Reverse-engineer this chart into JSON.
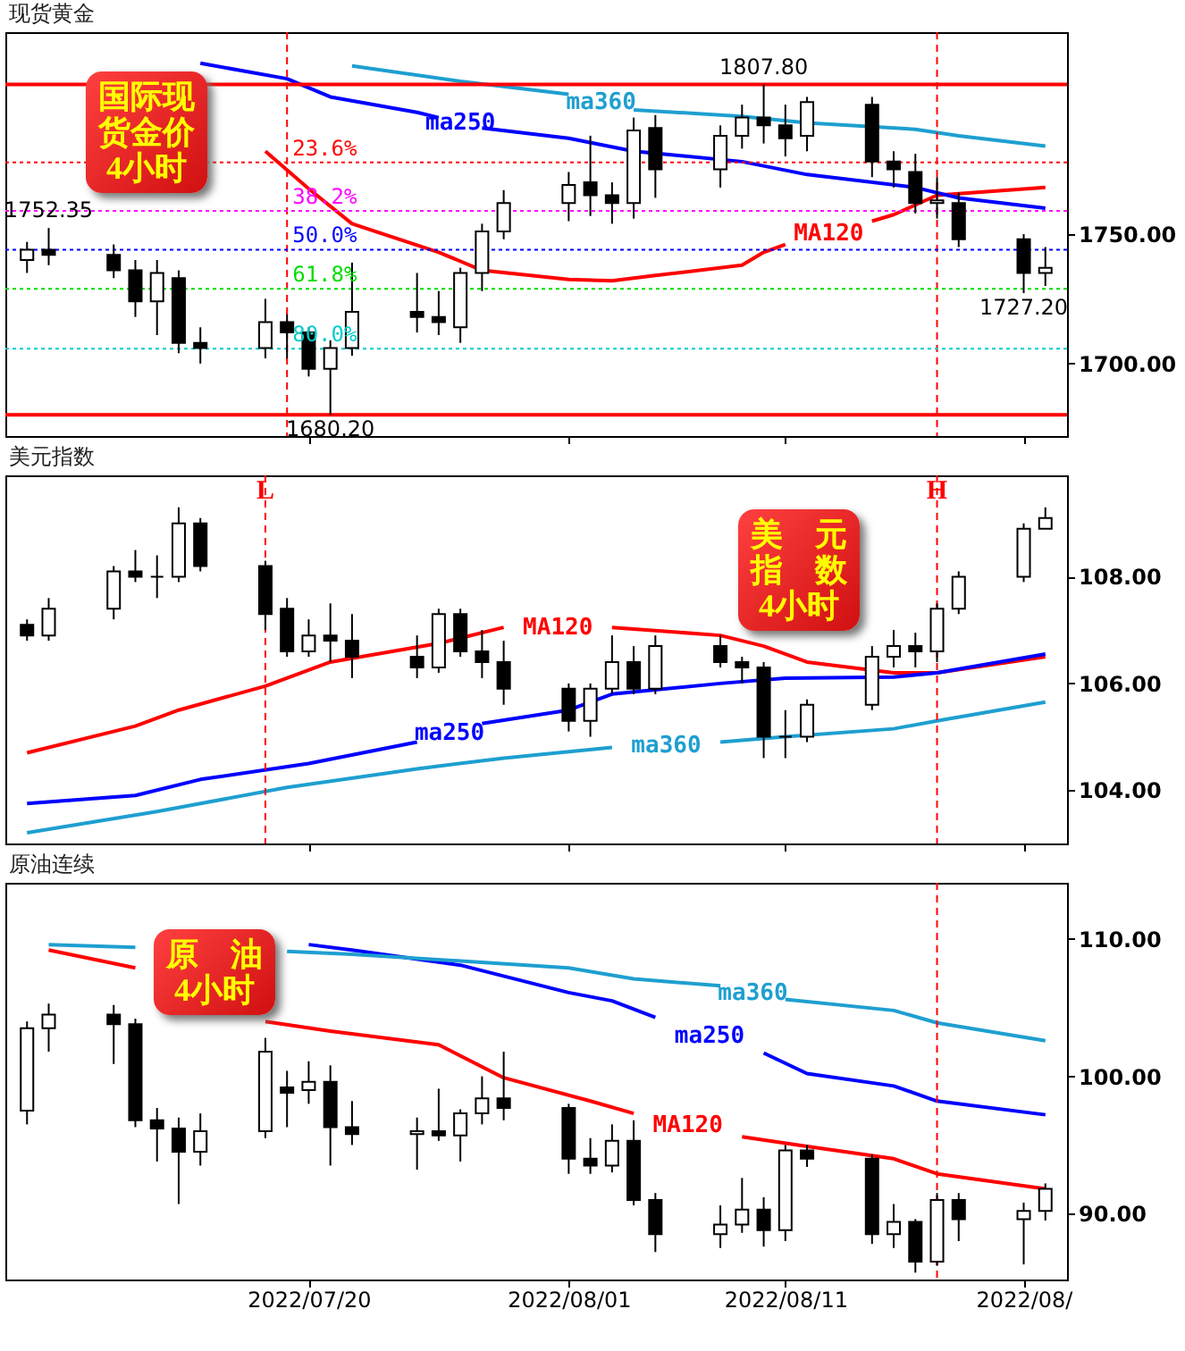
{
  "chart_data": [
    {
      "type": "candlestick",
      "title": "现货黄金",
      "xlim": [
        "2022-07-06",
        "2022-08-24"
      ],
      "tick_labels": "y",
      "x": [
        "2022-07-07",
        "2022-07-08",
        "2022-07-11",
        "2022-07-12",
        "2022-07-13",
        "2022-07-14",
        "2022-07-15",
        "2022-07-18",
        "2022-07-19",
        "2022-07-20",
        "2022-07-21",
        "2022-07-22",
        "2022-07-25",
        "2022-07-26",
        "2022-07-27",
        "2022-07-28",
        "2022-07-29",
        "2022-08-01",
        "2022-08-02",
        "2022-08-03",
        "2022-08-04",
        "2022-08-05",
        "2022-08-08",
        "2022-08-09",
        "2022-08-10",
        "2022-08-11",
        "2022-08-12",
        "2022-08-15",
        "2022-08-16",
        "2022-08-17",
        "2022-08-18",
        "2022-08-19",
        "2022-08-22",
        "2022-08-23"
      ],
      "ohlc": [
        [
          1740,
          1747,
          1735,
          1744
        ],
        [
          1744,
          1752.35,
          1738,
          1742
        ],
        [
          1742,
          1746,
          1733,
          1736
        ],
        [
          1736,
          1740,
          1718,
          1724
        ],
        [
          1724,
          1740,
          1711,
          1735
        ],
        [
          1733,
          1736,
          1704,
          1708
        ],
        [
          1708,
          1714,
          1700,
          1706
        ],
        [
          1706,
          1725,
          1702,
          1716
        ],
        [
          1716,
          1719,
          1702,
          1712
        ],
        [
          1712,
          1714,
          1695,
          1698
        ],
        [
          1698,
          1709,
          1680.2,
          1706
        ],
        [
          1706,
          1739,
          1703,
          1720
        ],
        [
          1720,
          1735,
          1712,
          1718
        ],
        [
          1718,
          1728,
          1711,
          1716
        ],
        [
          1714,
          1737,
          1708,
          1735
        ],
        [
          1735,
          1754,
          1728,
          1751
        ],
        [
          1751,
          1767,
          1748,
          1762
        ],
        [
          1762,
          1774,
          1755,
          1769
        ],
        [
          1770,
          1788,
          1757,
          1765
        ],
        [
          1765,
          1770,
          1754,
          1762
        ],
        [
          1762,
          1795,
          1756,
          1790
        ],
        [
          1791,
          1796,
          1764,
          1775
        ],
        [
          1775,
          1792,
          1768,
          1788
        ],
        [
          1788,
          1800,
          1783,
          1795
        ],
        [
          1795,
          1807.8,
          1785,
          1792
        ],
        [
          1792,
          1800,
          1780,
          1787
        ],
        [
          1788,
          1803,
          1782,
          1801
        ],
        [
          1800,
          1803,
          1772,
          1778
        ],
        [
          1778,
          1782,
          1768,
          1775
        ],
        [
          1774,
          1781,
          1758,
          1762
        ],
        [
          1762,
          1772,
          1756,
          1763
        ],
        [
          1762,
          1766,
          1745,
          1748
        ],
        [
          1748,
          1750,
          1727.2,
          1735
        ],
        [
          1735,
          1745,
          1730,
          1737
        ]
      ],
      "series": [
        {
          "type": "line",
          "name": "MA120",
          "color": "#ff0000",
          "x": [
            "2022-07-18",
            "2022-07-20",
            "2022-07-22",
            "2022-07-26",
            "2022-07-28",
            "2022-08-01",
            "2022-08-03",
            "2022-08-05",
            "2022-08-09",
            "2022-08-10",
            "2022-08-11",
            "2022-08-12",
            "2022-08-15",
            "2022-08-16",
            "2022-08-18",
            "2022-08-23"
          ],
          "values": [
            1782,
            1767.5,
            1754,
            1743,
            1736,
            1732.5,
            1732,
            1734,
            1738,
            1743,
            1746,
            null,
            1755,
            1757.5,
            1765,
            1768
          ]
        },
        {
          "type": "line",
          "name": "ma250",
          "color": "#0000ff",
          "x": [
            "2022-07-15",
            "2022-07-19",
            "2022-07-21",
            "2022-07-25",
            "2022-07-26",
            "2022-07-27",
            "2022-07-28",
            "2022-08-01",
            "2022-08-04",
            "2022-08-09",
            "2022-08-12",
            "2022-08-17",
            "2022-08-19",
            "2022-08-23"
          ],
          "values": [
            1816,
            1810,
            1803,
            1797,
            1795,
            null,
            1791,
            1787,
            1782,
            1778,
            1773,
            1768,
            1764,
            1760
          ]
        },
        {
          "type": "line",
          "name": "ma360",
          "color": "#1e9fd0",
          "x": [
            "2022-07-22",
            "2022-07-27",
            "2022-08-01",
            "2022-08-02",
            "2022-08-03",
            "2022-08-04",
            "2022-08-09",
            "2022-08-12",
            "2022-08-17",
            "2022-08-19",
            "2022-08-23"
          ],
          "values": [
            1815,
            1809,
            1804,
            null,
            null,
            1798,
            1795.5,
            1793,
            1790.5,
            1788,
            1784
          ]
        }
      ],
      "ylim": [
        1672,
        1828
      ],
      "yticks": [
        {
          "value": 1700,
          "label": "1700.00"
        },
        {
          "value": 1750,
          "label": "1750.00"
        }
      ],
      "xticks": [
        {
          "value": "2022-07-20",
          "label": null
        },
        {
          "value": "2022-08-01",
          "label": null
        },
        {
          "value": "2022-08-11",
          "label": null
        },
        {
          "value": "2022-08-22",
          "label": null
        }
      ],
      "ref_lines": [
        {
          "axis": "x",
          "value": "2022-07-19",
          "color": "#ff0000",
          "line_style": "dashed"
        },
        {
          "axis": "x",
          "value": "2022-08-18",
          "color": "#ff0000",
          "line_style": "dashed"
        },
        {
          "axis": "y",
          "value": 1807.8,
          "color": "#ff0000",
          "line_style": "solid"
        },
        {
          "axis": "y",
          "value": 1680.2,
          "color": "#ff0000",
          "line_style": "solid"
        },
        {
          "axis": "y",
          "value": 1777.7,
          "color": "#ff0000",
          "line_style": "dotted"
        },
        {
          "axis": "y",
          "value": 1759.0,
          "color": "#ff00ff",
          "line_style": "dotted"
        },
        {
          "axis": "y",
          "value": 1744.0,
          "color": "#0000ff",
          "line_style": "dotted"
        },
        {
          "axis": "y",
          "value": 1728.9,
          "color": "#00dd00",
          "line_style": "dotted"
        },
        {
          "axis": "y",
          "value": 1705.7,
          "color": "#00cccc",
          "line_style": "dotted"
        }
      ],
      "annotations": [
        "国际现货金价4小时",
        {
          "text": "23.6%",
          "x": "2022-07-19",
          "y": 1777.7
        },
        {
          "text": "38.2%",
          "x": "2022-07-19",
          "y": 1759.0
        },
        {
          "text": "50.0%",
          "x": "2022-07-19",
          "y": 1744.0
        },
        {
          "text": "61.8%",
          "x": "2022-07-19",
          "y": 1728.9
        },
        {
          "text": "80.0%",
          "x": "2022-07-19",
          "y": 1705.7
        },
        {
          "text": "1752.35",
          "x": "2022-07-08",
          "y": 1752.35
        },
        {
          "text": "1807.80",
          "x": "2022-08-10",
          "y": 1807.8
        },
        {
          "text": "1680.20",
          "x": "2022-07-21",
          "y": 1680.2
        },
        {
          "text": "1727.20",
          "x": "2022-08-22",
          "y": 1727.2
        }
      ]
    },
    {
      "type": "candlestick",
      "title": "美元指数",
      "xlim": [
        "2022-07-06",
        "2022-08-24"
      ],
      "tick_labels": "y",
      "x": [
        "2022-07-07",
        "2022-07-08",
        "2022-07-11",
        "2022-07-12",
        "2022-07-13",
        "2022-07-14",
        "2022-07-15",
        "2022-07-18",
        "2022-07-19",
        "2022-07-20",
        "2022-07-21",
        "2022-07-22",
        "2022-07-25",
        "2022-07-26",
        "2022-07-27",
        "2022-07-28",
        "2022-07-29",
        "2022-08-01",
        "2022-08-02",
        "2022-08-03",
        "2022-08-04",
        "2022-08-05",
        "2022-08-08",
        "2022-08-09",
        "2022-08-10",
        "2022-08-11",
        "2022-08-12",
        "2022-08-15",
        "2022-08-16",
        "2022-08-17",
        "2022-08-18",
        "2022-08-19",
        "2022-08-22",
        "2022-08-23"
      ],
      "ohlc": [
        [
          107.1,
          107.2,
          106.8,
          106.9
        ],
        [
          106.9,
          107.6,
          106.8,
          107.4
        ],
        [
          107.4,
          108.2,
          107.2,
          108.1
        ],
        [
          108.1,
          108.5,
          107.9,
          108.0
        ],
        [
          108.0,
          108.4,
          107.6,
          108.0
        ],
        [
          108.0,
          109.3,
          107.9,
          109.0
        ],
        [
          109.0,
          109.1,
          108.1,
          108.2
        ],
        [
          108.2,
          108.3,
          107.0,
          107.3
        ],
        [
          107.4,
          107.6,
          106.5,
          106.6
        ],
        [
          106.6,
          107.2,
          106.5,
          106.9
        ],
        [
          106.9,
          107.5,
          106.4,
          106.8
        ],
        [
          106.8,
          107.3,
          106.1,
          106.5
        ],
        [
          106.5,
          106.9,
          106.1,
          106.3
        ],
        [
          106.3,
          107.4,
          106.2,
          107.3
        ],
        [
          107.3,
          107.4,
          106.5,
          106.6
        ],
        [
          106.6,
          107.0,
          106.1,
          106.4
        ],
        [
          106.4,
          106.8,
          105.6,
          105.9
        ],
        [
          105.9,
          106.0,
          105.1,
          105.3
        ],
        [
          105.3,
          106.0,
          105.0,
          105.9
        ],
        [
          105.9,
          106.9,
          105.8,
          106.4
        ],
        [
          106.4,
          106.7,
          105.8,
          105.9
        ],
        [
          105.9,
          106.9,
          105.8,
          106.7
        ],
        [
          106.7,
          106.9,
          106.3,
          106.4
        ],
        [
          106.4,
          106.5,
          106.0,
          106.3
        ],
        [
          106.3,
          106.4,
          104.6,
          105.0
        ],
        [
          105.0,
          105.5,
          104.6,
          105.0
        ],
        [
          105.0,
          105.7,
          104.9,
          105.6
        ],
        [
          105.6,
          106.7,
          105.5,
          106.5
        ],
        [
          106.5,
          107.0,
          106.3,
          106.7
        ],
        [
          106.7,
          106.95,
          106.3,
          106.6
        ],
        [
          106.6,
          107.5,
          106.4,
          107.4
        ],
        [
          107.4,
          108.1,
          107.3,
          108.0
        ],
        [
          108.0,
          109.0,
          107.9,
          108.9
        ],
        [
          108.9,
          109.3,
          108.9,
          109.1
        ]
      ],
      "series": [
        {
          "type": "line",
          "name": "MA120",
          "color": "#ff0000",
          "x": [
            "2022-07-07",
            "2022-07-12",
            "2022-07-14",
            "2022-07-18",
            "2022-07-21",
            "2022-07-26",
            "2022-07-29",
            "2022-08-01",
            "2022-08-02",
            "2022-08-03",
            "2022-08-08",
            "2022-08-10",
            "2022-08-12",
            "2022-08-16",
            "2022-08-18",
            "2022-08-23"
          ],
          "values": [
            104.7,
            105.2,
            105.5,
            105.95,
            106.4,
            106.75,
            107.05,
            null,
            null,
            107.05,
            106.9,
            106.7,
            106.4,
            106.2,
            106.2,
            106.5
          ]
        },
        {
          "type": "line",
          "name": "ma250",
          "color": "#0000ff",
          "x": [
            "2022-07-07",
            "2022-07-12",
            "2022-07-15",
            "2022-07-20",
            "2022-07-25",
            "2022-07-26",
            "2022-07-27",
            "2022-07-28",
            "2022-08-01",
            "2022-08-03",
            "2022-08-08",
            "2022-08-11",
            "2022-08-16",
            "2022-08-18",
            "2022-08-23"
          ],
          "values": [
            103.75,
            103.9,
            104.2,
            104.5,
            104.9,
            null,
            null,
            105.25,
            105.5,
            105.8,
            106.0,
            106.1,
            106.12,
            106.2,
            106.55
          ]
        },
        {
          "type": "line",
          "name": "ma360",
          "color": "#1e9fd0",
          "x": [
            "2022-07-07",
            "2022-07-13",
            "2022-07-19",
            "2022-07-25",
            "2022-07-29",
            "2022-08-03",
            "2022-08-04",
            "2022-08-05",
            "2022-08-08",
            "2022-08-11",
            "2022-08-16",
            "2022-08-18",
            "2022-08-23"
          ],
          "values": [
            103.2,
            103.6,
            104.05,
            104.4,
            104.6,
            104.8,
            null,
            null,
            104.9,
            105.0,
            105.15,
            105.3,
            105.65
          ]
        }
      ],
      "ylim": [
        103.0,
        109.9
      ],
      "yticks": [
        {
          "value": 104,
          "label": "104.00"
        },
        {
          "value": 106,
          "label": "106.00"
        },
        {
          "value": 108,
          "label": "108.00"
        }
      ],
      "xticks": [
        {
          "value": "2022-07-20",
          "label": null
        },
        {
          "value": "2022-08-01",
          "label": null
        },
        {
          "value": "2022-08-11",
          "label": null
        },
        {
          "value": "2022-08-22",
          "label": null
        }
      ],
      "ref_lines": [
        {
          "axis": "x",
          "value": "2022-07-18",
          "label": "L",
          "color": "#ff0000",
          "line_style": "dashed"
        },
        {
          "axis": "x",
          "value": "2022-08-18",
          "label": "H",
          "color": "#ff0000",
          "line_style": "dashed"
        }
      ],
      "annotations": [
        "美　元指　数4小时"
      ]
    },
    {
      "type": "candlestick",
      "title": "原油连续",
      "xlim": [
        "2022-07-06",
        "2022-08-24"
      ],
      "x": [
        "2022-07-07",
        "2022-07-08",
        "2022-07-11",
        "2022-07-12",
        "2022-07-13",
        "2022-07-14",
        "2022-07-15",
        "2022-07-18",
        "2022-07-19",
        "2022-07-20",
        "2022-07-21",
        "2022-07-22",
        "2022-07-25",
        "2022-07-26",
        "2022-07-27",
        "2022-07-28",
        "2022-07-29",
        "2022-08-01",
        "2022-08-02",
        "2022-08-03",
        "2022-08-04",
        "2022-08-05",
        "2022-08-08",
        "2022-08-09",
        "2022-08-10",
        "2022-08-11",
        "2022-08-12",
        "2022-08-15",
        "2022-08-16",
        "2022-08-17",
        "2022-08-18",
        "2022-08-19",
        "2022-08-22",
        "2022-08-23"
      ],
      "ohlc": [
        [
          97.5,
          104.0,
          96.5,
          103.5
        ],
        [
          103.5,
          105.3,
          101.8,
          104.5
        ],
        [
          104.5,
          105.2,
          100.9,
          103.8
        ],
        [
          103.8,
          104.2,
          96.3,
          96.8
        ],
        [
          96.8,
          97.7,
          93.8,
          96.2
        ],
        [
          96.2,
          97.0,
          90.7,
          94.5
        ],
        [
          94.5,
          97.3,
          93.5,
          96.0
        ],
        [
          96.0,
          102.8,
          95.5,
          101.8
        ],
        [
          99.2,
          100.4,
          96.3,
          98.8
        ],
        [
          99.0,
          101.1,
          98.0,
          99.6
        ],
        [
          99.6,
          100.8,
          93.5,
          96.3
        ],
        [
          96.3,
          98.2,
          95.0,
          95.8
        ],
        [
          95.8,
          97.0,
          93.2,
          96.0
        ],
        [
          96.0,
          99.1,
          95.3,
          95.7
        ],
        [
          95.7,
          97.6,
          93.8,
          97.3
        ],
        [
          97.3,
          100.0,
          96.5,
          98.4
        ],
        [
          98.4,
          101.8,
          96.8,
          97.7
        ],
        [
          97.7,
          98.0,
          92.9,
          94.0
        ],
        [
          94.0,
          95.5,
          92.9,
          93.5
        ],
        [
          93.5,
          96.5,
          93.0,
          95.3
        ],
        [
          95.3,
          96.8,
          90.6,
          91.0
        ],
        [
          91.0,
          91.5,
          87.2,
          88.5
        ],
        [
          88.5,
          90.6,
          87.5,
          89.2
        ],
        [
          89.2,
          92.6,
          88.6,
          90.3
        ],
        [
          90.3,
          91.2,
          87.6,
          88.8
        ],
        [
          88.8,
          95.0,
          88.0,
          94.6
        ],
        [
          94.6,
          95.0,
          93.4,
          94.0
        ],
        [
          94.0,
          94.3,
          87.8,
          88.5
        ],
        [
          88.5,
          90.7,
          87.5,
          89.4
        ],
        [
          89.4,
          89.6,
          85.7,
          86.5
        ],
        [
          86.5,
          91.5,
          86.2,
          91.0
        ],
        [
          91.0,
          91.5,
          88.0,
          89.6
        ],
        [
          89.6,
          90.8,
          86.3,
          90.2
        ],
        [
          90.2,
          92.2,
          89.5,
          91.8
        ]
      ],
      "series": [
        {
          "type": "line",
          "name": "MA120",
          "color": "#ff0000",
          "x": [
            "2022-07-08",
            "2022-07-12",
            "2022-07-13",
            "2022-07-18",
            "2022-07-21",
            "2022-07-26",
            "2022-07-29",
            "2022-08-02",
            "2022-08-04",
            "2022-08-05",
            "2022-08-08",
            "2022-08-09",
            "2022-08-12",
            "2022-08-16",
            "2022-08-18",
            "2022-08-23"
          ],
          "values": [
            109.2,
            107.9,
            null,
            104.0,
            103.3,
            102.3,
            99.9,
            98.2,
            97.3,
            null,
            null,
            95.6,
            94.9,
            94.0,
            92.9,
            91.8
          ]
        },
        {
          "type": "line",
          "name": "ma250",
          "color": "#0000ff",
          "x": [
            "2022-07-20",
            "2022-07-22",
            "2022-07-27",
            "2022-08-01",
            "2022-08-03",
            "2022-08-05",
            "2022-08-08",
            "2022-08-09",
            "2022-08-10",
            "2022-08-12",
            "2022-08-16",
            "2022-08-18",
            "2022-08-23"
          ],
          "values": [
            109.6,
            109.2,
            108.1,
            106.1,
            105.5,
            104.3,
            null,
            null,
            101.7,
            100.2,
            99.3,
            98.2,
            97.2
          ]
        },
        {
          "type": "line",
          "name": "ma360",
          "color": "#1e9fd0",
          "x": [
            "2022-07-08",
            "2022-07-12",
            "2022-07-13",
            "2022-07-19",
            "2022-07-22",
            "2022-07-27",
            "2022-08-01",
            "2022-08-04",
            "2022-08-08",
            "2022-08-09",
            "2022-08-10",
            "2022-08-11",
            "2022-08-16",
            "2022-08-18",
            "2022-08-23"
          ],
          "values": [
            109.6,
            109.4,
            null,
            109.1,
            108.9,
            108.4,
            107.9,
            107.1,
            106.6,
            null,
            null,
            105.6,
            104.8,
            103.9,
            102.6
          ]
        }
      ],
      "ylim": [
        85.2,
        114.1
      ],
      "yticks": [
        {
          "value": 90,
          "label": "90.00"
        },
        {
          "value": 100,
          "label": "100.00"
        },
        {
          "value": 110,
          "label": "110.00"
        }
      ],
      "xticks": [
        {
          "value": "2022-07-20",
          "label": "2022/07/20"
        },
        {
          "value": "2022-08-01",
          "label": "2022/08/01"
        },
        {
          "value": "2022-08-11",
          "label": "2022/08/11"
        },
        {
          "value": "2022-08-22",
          "label": "2022/08/"
        }
      ],
      "ref_lines": [
        {
          "axis": "x",
          "value": "2022-08-18",
          "color": "#ff0000",
          "line_style": "dashed"
        }
      ],
      "annotations": [
        "原　油4小时"
      ]
    }
  ]
}
